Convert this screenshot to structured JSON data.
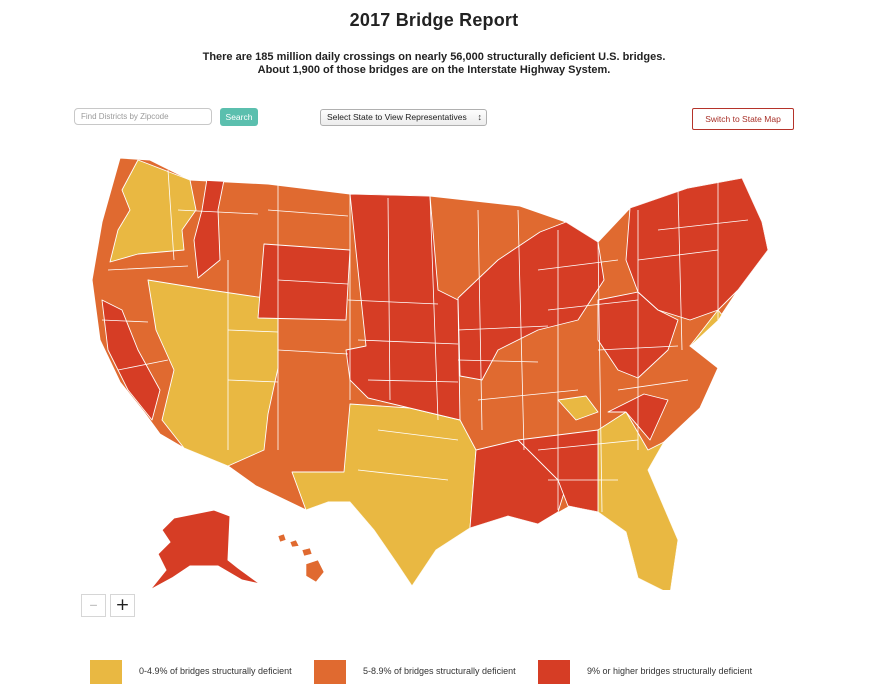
{
  "header": {
    "title": "2017 Bridge Report",
    "subtitle_line1": "There are 185 million daily crossings on nearly 56,000 structurally deficient U.S. bridges.",
    "subtitle_line2": "About 1,900 of those bridges are on the Interstate Highway System."
  },
  "controls": {
    "zip_placeholder": "Find Districts by Zipcode",
    "zip_value": "",
    "search_label": "Search",
    "state_select_value": "Select State to View Representatives",
    "switch_map_label": "Switch to State Map"
  },
  "zoom": {
    "out_label": "–",
    "in_label": "+"
  },
  "colors": {
    "low": "#e9b842",
    "medium": "#e06a30",
    "high": "#d63d25",
    "border": "#ffffff",
    "accent": "#5bbfae"
  },
  "legend": [
    {
      "label": "0-4.9% of bridges structurally deficient",
      "color": "#e9b842"
    },
    {
      "label": "5-8.9% of bridges structurally deficient",
      "color": "#e06a30"
    },
    {
      "label": "9% or higher bridges structurally deficient",
      "color": "#d63d25"
    }
  ]
}
